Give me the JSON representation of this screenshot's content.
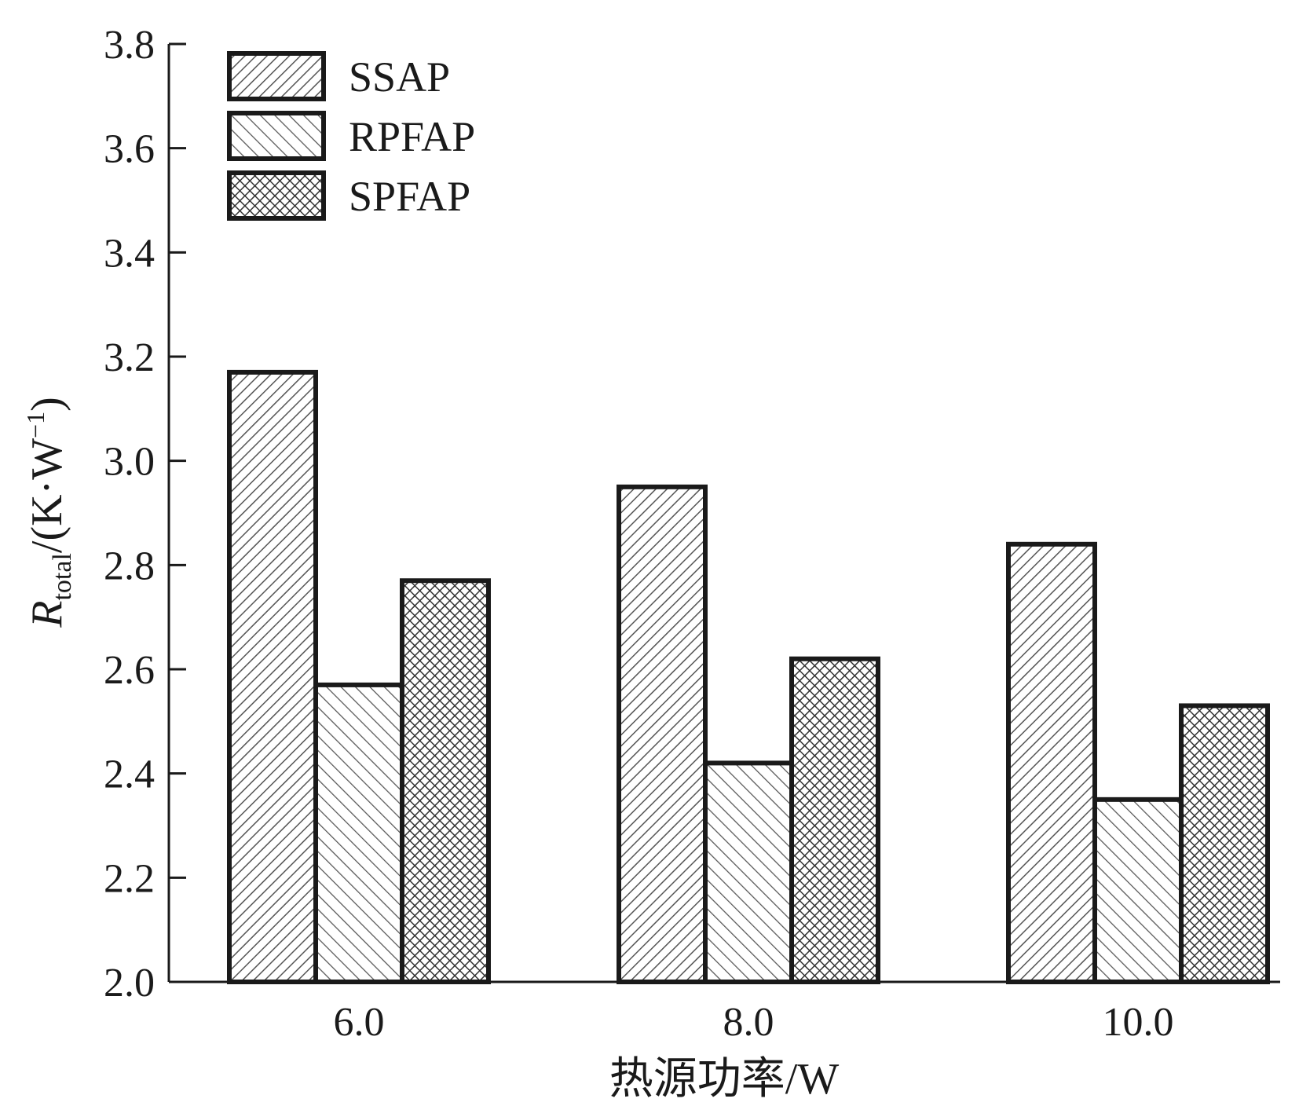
{
  "chart_data": {
    "type": "bar",
    "title": "",
    "xlabel": "热源功率/W",
    "ylabel": {
      "symbol": "R",
      "subscript": "total",
      "unit": "/(K·W",
      "superscript": "−1",
      "close": ")"
    },
    "categories": [
      "6.0",
      "8.0",
      "10.0"
    ],
    "ylim": [
      2.0,
      3.8
    ],
    "yticks": [
      "2.0",
      "2.2",
      "2.4",
      "2.6",
      "2.8",
      "3.0",
      "3.2",
      "3.4",
      "3.6",
      "3.8"
    ],
    "series": [
      {
        "name": "SSAP",
        "pattern": "diagonal-fine",
        "values": [
          3.17,
          2.95,
          2.84
        ]
      },
      {
        "name": "RPFAP",
        "pattern": "diagonal-back",
        "values": [
          2.57,
          2.42,
          2.35
        ]
      },
      {
        "name": "SPFAP",
        "pattern": "crosshatch",
        "values": [
          2.77,
          2.62,
          2.53
        ]
      }
    ],
    "legend_position": "top-left",
    "grid": false,
    "colors": {
      "stroke": "#1a1a1a",
      "background": "#ffffff"
    }
  }
}
